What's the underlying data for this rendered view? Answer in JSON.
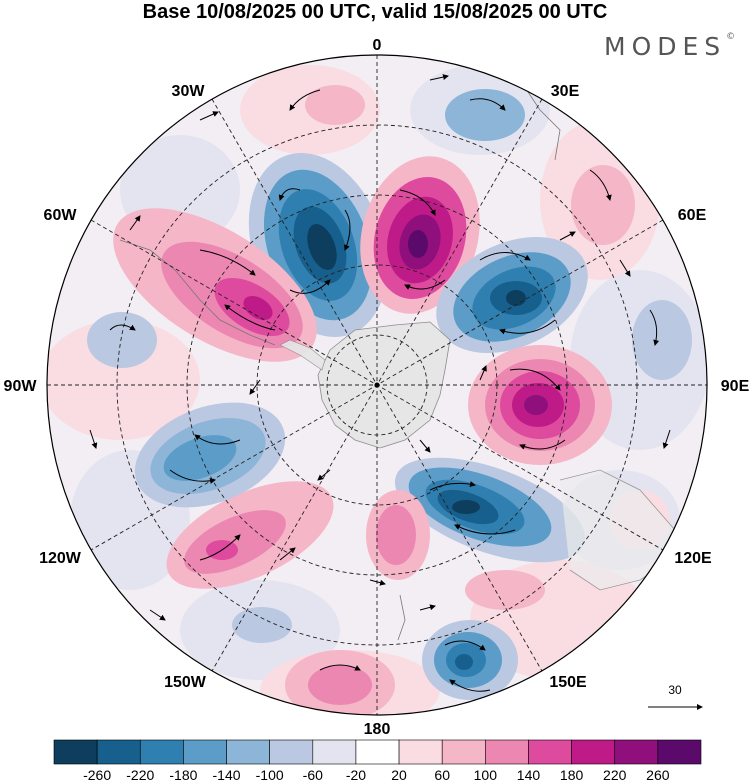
{
  "title": "Base 10/08/2025 00 UTC, valid 15/08/2025 00 UTC",
  "brand": "MODES",
  "brand_mark": "©",
  "longitude_labels": {
    "lon_0": "0",
    "lon_30E": "30E",
    "lon_60E": "60E",
    "lon_90E": "90E",
    "lon_120E": "120E",
    "lon_150E": "150E",
    "lon_180": "180",
    "lon_150W": "150W",
    "lon_120W": "120W",
    "lon_90W": "90W",
    "lon_60W": "60W",
    "lon_30W": "30W"
  },
  "vector_reference": "30",
  "colorbar": {
    "ticks": [
      "-260",
      "-220",
      "-180",
      "-140",
      "-100",
      "-60",
      "-20",
      "20",
      "60",
      "100",
      "140",
      "180",
      "220",
      "260"
    ],
    "colors": [
      "#0d3e5e",
      "#175f8d",
      "#2f7fb0",
      "#5b9dc8",
      "#8db5d8",
      "#bac8e2",
      "#e4e4f1",
      "#ffffff",
      "#f9dde3",
      "#f5b6c8",
      "#ec87b1",
      "#de4a9d",
      "#bf1b88",
      "#8f0f7d",
      "#5b0a6c"
    ]
  },
  "colors": {
    "land": "#e6e6e6",
    "grid": "#222222"
  }
}
